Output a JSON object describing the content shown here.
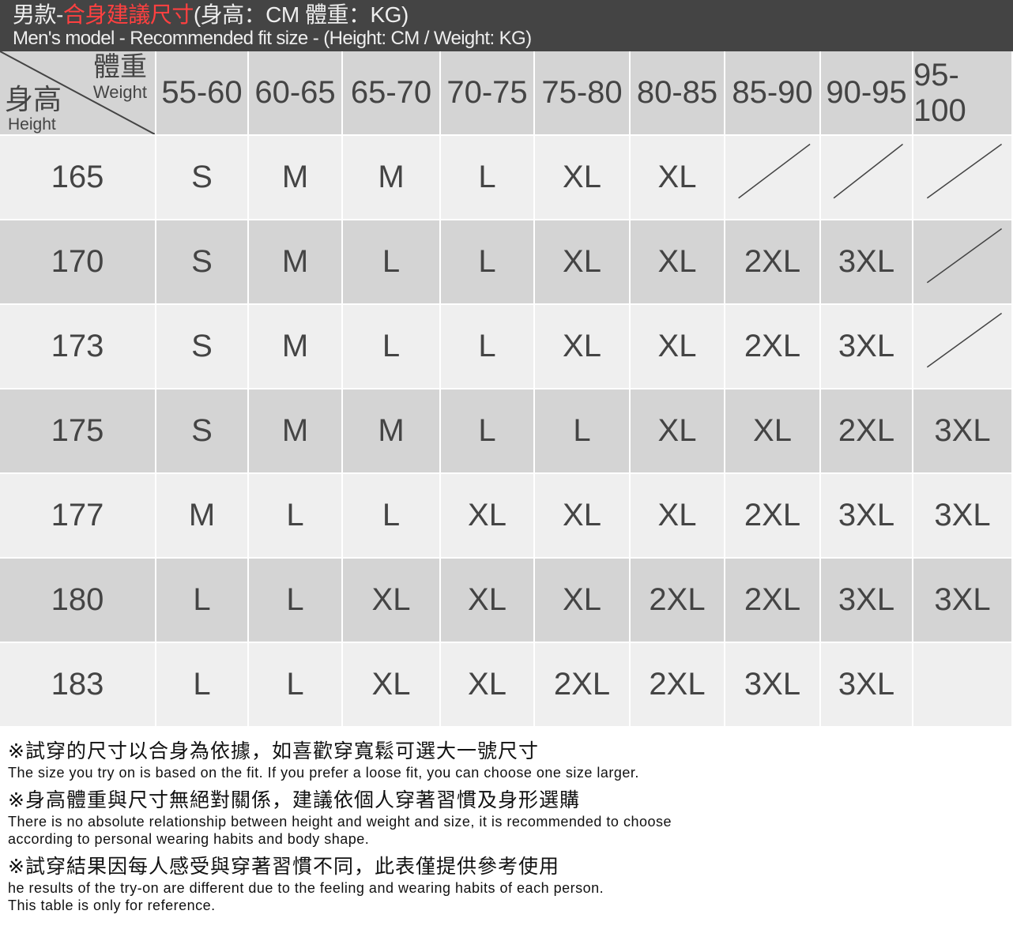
{
  "title": {
    "zh_prefix": "男款-",
    "zh_red": "合身建議尺寸",
    "zh_suffix": "(身高：CM  體重：KG)",
    "en": "Men's model - Recommended fit size - (Height: CM / Weight: KG)"
  },
  "colors": {
    "title_bg": "#444444",
    "accent": "#ff4040",
    "row_light": "#efefef",
    "row_dark": "#d4d4d4"
  },
  "corner": {
    "weight_zh": "體重",
    "weight_en": "Weight",
    "height_zh": "身高",
    "height_en": "Height"
  },
  "weights": [
    "55-60",
    "60-65",
    "65-70",
    "70-75",
    "75-80",
    "80-85",
    "85-90",
    "90-95",
    "95-100"
  ],
  "rows": [
    {
      "height": "165",
      "sizes": [
        "S",
        "M",
        "M",
        "L",
        "XL",
        "XL",
        "/",
        "/",
        "/"
      ]
    },
    {
      "height": "170",
      "sizes": [
        "S",
        "M",
        "L",
        "L",
        "XL",
        "XL",
        "2XL",
        "3XL",
        "/"
      ]
    },
    {
      "height": "173",
      "sizes": [
        "S",
        "M",
        "L",
        "L",
        "XL",
        "XL",
        "2XL",
        "3XL",
        "/"
      ]
    },
    {
      "height": "175",
      "sizes": [
        "S",
        "M",
        "M",
        "L",
        "L",
        "XL",
        "XL",
        "2XL",
        "3XL"
      ]
    },
    {
      "height": "177",
      "sizes": [
        "M",
        "L",
        "L",
        "XL",
        "XL",
        "XL",
        "2XL",
        "3XL",
        "3XL"
      ]
    },
    {
      "height": "180",
      "sizes": [
        "L",
        "L",
        "XL",
        "XL",
        "XL",
        "2XL",
        "2XL",
        "3XL",
        "3XL"
      ]
    },
    {
      "height": "183",
      "sizes": [
        "L",
        "L",
        "XL",
        "XL",
        "2XL",
        "2XL",
        "3XL",
        "3XL",
        ""
      ]
    }
  ],
  "notes": [
    {
      "zh": "※試穿的尺寸以合身為依據，如喜歡穿寬鬆可選大一號尺寸",
      "en": [
        "The size you try on is based on the fit. If you prefer a loose fit, you can choose one size larger."
      ]
    },
    {
      "zh": "※身高體重與尺寸無絕對關係，建議依個人穿著習慣及身形選購",
      "en": [
        "There is no absolute relationship between height and weight and size, it is recommended to choose",
        "according to personal wearing habits and body shape."
      ]
    },
    {
      "zh": "※試穿結果因每人感受與穿著習慣不同，此表僅提供參考使用",
      "en": [
        "he results of the try-on are different due to the feeling and wearing habits of each person.",
        "This table is only for reference."
      ]
    }
  ]
}
